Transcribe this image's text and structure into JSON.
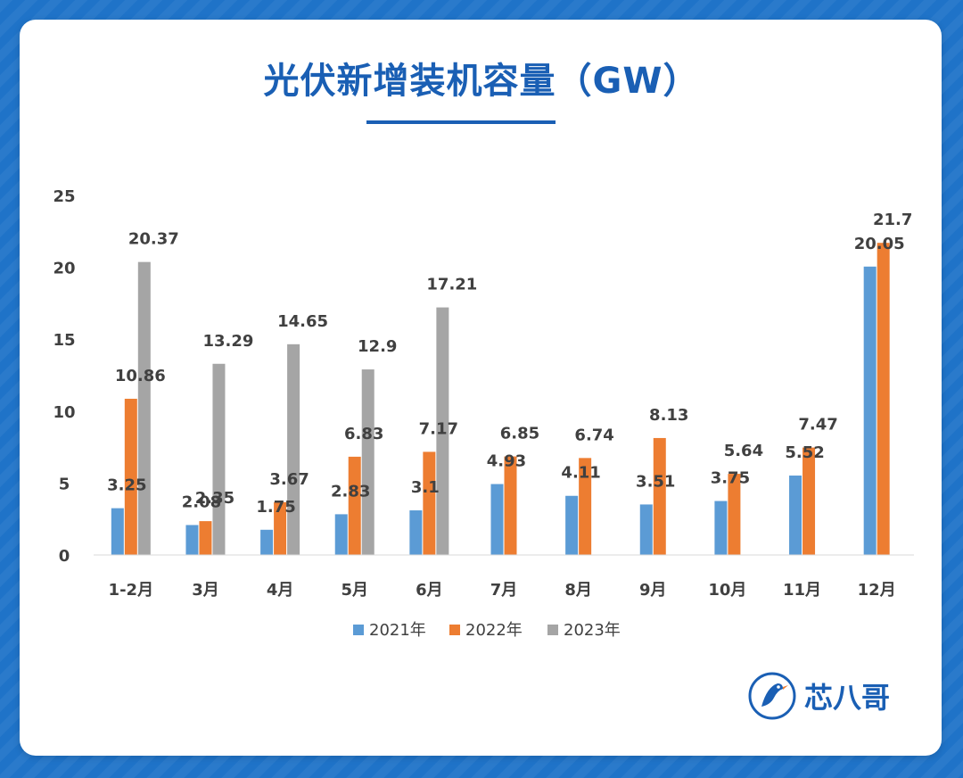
{
  "title": "光伏新增装机容量（GW）",
  "brand": {
    "name": "芯八哥",
    "accent": "#1a5fb4"
  },
  "chart_data": {
    "type": "bar",
    "categories": [
      "1-2月",
      "3月",
      "4月",
      "5月",
      "6月",
      "7月",
      "8月",
      "9月",
      "10月",
      "11月",
      "12月"
    ],
    "ylim": [
      0,
      25
    ],
    "yticks": [
      0,
      5,
      10,
      15,
      20,
      25
    ],
    "grid": false,
    "legend_position": "bottom",
    "series": [
      {
        "name": "2021年",
        "color": "#5b9bd5",
        "values": [
          3.25,
          2.08,
          1.75,
          2.83,
          3.1,
          4.93,
          4.11,
          3.51,
          3.75,
          5.52,
          20.05
        ]
      },
      {
        "name": "2022年",
        "color": "#ed7d31",
        "values": [
          10.86,
          2.35,
          3.67,
          6.83,
          7.17,
          6.85,
          6.74,
          8.13,
          5.64,
          7.47,
          21.7
        ]
      },
      {
        "name": "2023年",
        "color": "#a5a5a5",
        "values": [
          20.37,
          13.29,
          14.65,
          12.9,
          17.21,
          null,
          null,
          null,
          null,
          null,
          null
        ]
      }
    ],
    "data_labels": [
      [
        "3.25",
        "2.08",
        "1.75",
        "2.83",
        "3.1",
        "4.93",
        "4.11",
        "3.51",
        "3.75",
        "5.52",
        "20.05"
      ],
      [
        "10.86",
        "2.35",
        "3.67",
        "6.83",
        "7.17",
        "6.85",
        "6.74",
        "8.13",
        "5.64",
        "7.47",
        "21.7"
      ],
      [
        "20.37",
        "13.29",
        "14.65",
        "12.9",
        "17.21",
        null,
        null,
        null,
        null,
        null,
        null
      ]
    ]
  }
}
